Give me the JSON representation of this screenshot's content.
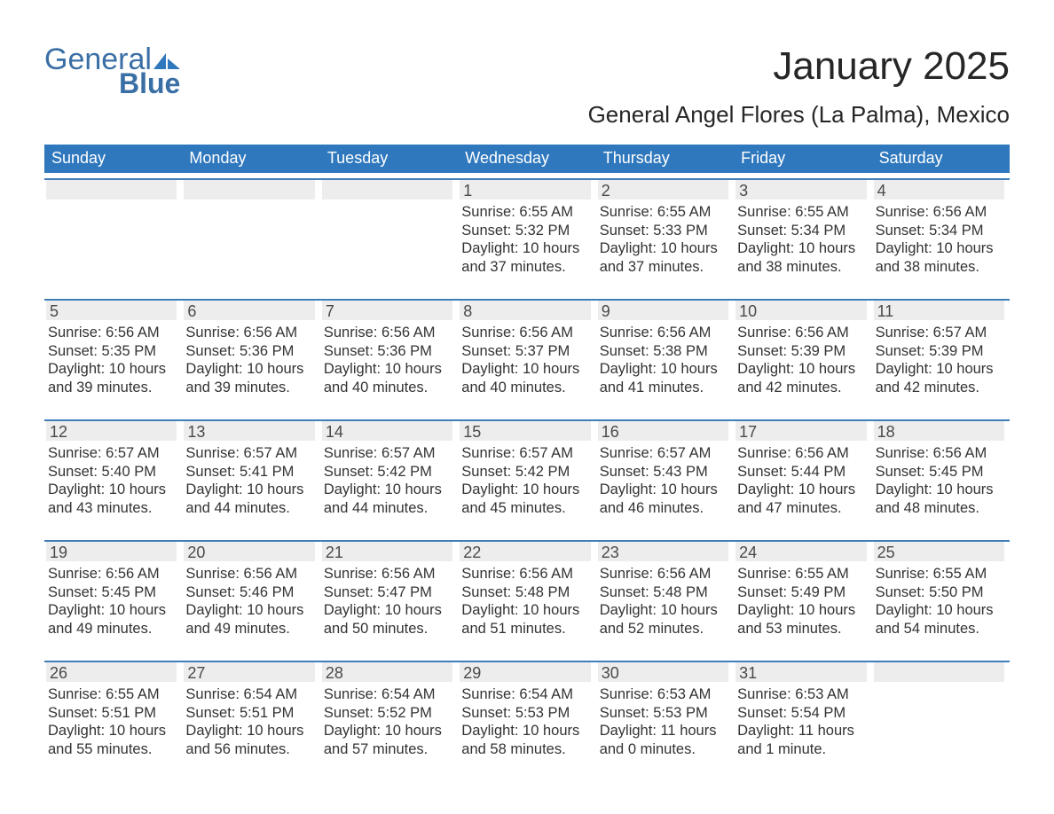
{
  "logo": {
    "text_top": "General",
    "text_bottom": "Blue"
  },
  "title": "January 2025",
  "location": "General Angel Flores (La Palma), Mexico",
  "header_bg": "#2f78bd",
  "header_fg": "#ffffff",
  "daynum_bg": "#ededed",
  "cell_border": "#3f7fb8",
  "text_color": "#333333",
  "dow": [
    "Sunday",
    "Monday",
    "Tuesday",
    "Wednesday",
    "Thursday",
    "Friday",
    "Saturday"
  ],
  "weeks": [
    [
      null,
      null,
      null,
      {
        "n": "1",
        "sr": "Sunrise: 6:55 AM",
        "ss": "Sunset: 5:32 PM",
        "dl1": "Daylight: 10 hours",
        "dl2": "and 37 minutes."
      },
      {
        "n": "2",
        "sr": "Sunrise: 6:55 AM",
        "ss": "Sunset: 5:33 PM",
        "dl1": "Daylight: 10 hours",
        "dl2": "and 37 minutes."
      },
      {
        "n": "3",
        "sr": "Sunrise: 6:55 AM",
        "ss": "Sunset: 5:34 PM",
        "dl1": "Daylight: 10 hours",
        "dl2": "and 38 minutes."
      },
      {
        "n": "4",
        "sr": "Sunrise: 6:56 AM",
        "ss": "Sunset: 5:34 PM",
        "dl1": "Daylight: 10 hours",
        "dl2": "and 38 minutes."
      }
    ],
    [
      {
        "n": "5",
        "sr": "Sunrise: 6:56 AM",
        "ss": "Sunset: 5:35 PM",
        "dl1": "Daylight: 10 hours",
        "dl2": "and 39 minutes."
      },
      {
        "n": "6",
        "sr": "Sunrise: 6:56 AM",
        "ss": "Sunset: 5:36 PM",
        "dl1": "Daylight: 10 hours",
        "dl2": "and 39 minutes."
      },
      {
        "n": "7",
        "sr": "Sunrise: 6:56 AM",
        "ss": "Sunset: 5:36 PM",
        "dl1": "Daylight: 10 hours",
        "dl2": "and 40 minutes."
      },
      {
        "n": "8",
        "sr": "Sunrise: 6:56 AM",
        "ss": "Sunset: 5:37 PM",
        "dl1": "Daylight: 10 hours",
        "dl2": "and 40 minutes."
      },
      {
        "n": "9",
        "sr": "Sunrise: 6:56 AM",
        "ss": "Sunset: 5:38 PM",
        "dl1": "Daylight: 10 hours",
        "dl2": "and 41 minutes."
      },
      {
        "n": "10",
        "sr": "Sunrise: 6:56 AM",
        "ss": "Sunset: 5:39 PM",
        "dl1": "Daylight: 10 hours",
        "dl2": "and 42 minutes."
      },
      {
        "n": "11",
        "sr": "Sunrise: 6:57 AM",
        "ss": "Sunset: 5:39 PM",
        "dl1": "Daylight: 10 hours",
        "dl2": "and 42 minutes."
      }
    ],
    [
      {
        "n": "12",
        "sr": "Sunrise: 6:57 AM",
        "ss": "Sunset: 5:40 PM",
        "dl1": "Daylight: 10 hours",
        "dl2": "and 43 minutes."
      },
      {
        "n": "13",
        "sr": "Sunrise: 6:57 AM",
        "ss": "Sunset: 5:41 PM",
        "dl1": "Daylight: 10 hours",
        "dl2": "and 44 minutes."
      },
      {
        "n": "14",
        "sr": "Sunrise: 6:57 AM",
        "ss": "Sunset: 5:42 PM",
        "dl1": "Daylight: 10 hours",
        "dl2": "and 44 minutes."
      },
      {
        "n": "15",
        "sr": "Sunrise: 6:57 AM",
        "ss": "Sunset: 5:42 PM",
        "dl1": "Daylight: 10 hours",
        "dl2": "and 45 minutes."
      },
      {
        "n": "16",
        "sr": "Sunrise: 6:57 AM",
        "ss": "Sunset: 5:43 PM",
        "dl1": "Daylight: 10 hours",
        "dl2": "and 46 minutes."
      },
      {
        "n": "17",
        "sr": "Sunrise: 6:56 AM",
        "ss": "Sunset: 5:44 PM",
        "dl1": "Daylight: 10 hours",
        "dl2": "and 47 minutes."
      },
      {
        "n": "18",
        "sr": "Sunrise: 6:56 AM",
        "ss": "Sunset: 5:45 PM",
        "dl1": "Daylight: 10 hours",
        "dl2": "and 48 minutes."
      }
    ],
    [
      {
        "n": "19",
        "sr": "Sunrise: 6:56 AM",
        "ss": "Sunset: 5:45 PM",
        "dl1": "Daylight: 10 hours",
        "dl2": "and 49 minutes."
      },
      {
        "n": "20",
        "sr": "Sunrise: 6:56 AM",
        "ss": "Sunset: 5:46 PM",
        "dl1": "Daylight: 10 hours",
        "dl2": "and 49 minutes."
      },
      {
        "n": "21",
        "sr": "Sunrise: 6:56 AM",
        "ss": "Sunset: 5:47 PM",
        "dl1": "Daylight: 10 hours",
        "dl2": "and 50 minutes."
      },
      {
        "n": "22",
        "sr": "Sunrise: 6:56 AM",
        "ss": "Sunset: 5:48 PM",
        "dl1": "Daylight: 10 hours",
        "dl2": "and 51 minutes."
      },
      {
        "n": "23",
        "sr": "Sunrise: 6:56 AM",
        "ss": "Sunset: 5:48 PM",
        "dl1": "Daylight: 10 hours",
        "dl2": "and 52 minutes."
      },
      {
        "n": "24",
        "sr": "Sunrise: 6:55 AM",
        "ss": "Sunset: 5:49 PM",
        "dl1": "Daylight: 10 hours",
        "dl2": "and 53 minutes."
      },
      {
        "n": "25",
        "sr": "Sunrise: 6:55 AM",
        "ss": "Sunset: 5:50 PM",
        "dl1": "Daylight: 10 hours",
        "dl2": "and 54 minutes."
      }
    ],
    [
      {
        "n": "26",
        "sr": "Sunrise: 6:55 AM",
        "ss": "Sunset: 5:51 PM",
        "dl1": "Daylight: 10 hours",
        "dl2": "and 55 minutes."
      },
      {
        "n": "27",
        "sr": "Sunrise: 6:54 AM",
        "ss": "Sunset: 5:51 PM",
        "dl1": "Daylight: 10 hours",
        "dl2": "and 56 minutes."
      },
      {
        "n": "28",
        "sr": "Sunrise: 6:54 AM",
        "ss": "Sunset: 5:52 PM",
        "dl1": "Daylight: 10 hours",
        "dl2": "and 57 minutes."
      },
      {
        "n": "29",
        "sr": "Sunrise: 6:54 AM",
        "ss": "Sunset: 5:53 PM",
        "dl1": "Daylight: 10 hours",
        "dl2": "and 58 minutes."
      },
      {
        "n": "30",
        "sr": "Sunrise: 6:53 AM",
        "ss": "Sunset: 5:53 PM",
        "dl1": "Daylight: 11 hours",
        "dl2": "and 0 minutes."
      },
      {
        "n": "31",
        "sr": "Sunrise: 6:53 AM",
        "ss": "Sunset: 5:54 PM",
        "dl1": "Daylight: 11 hours",
        "dl2": "and 1 minute."
      },
      null
    ]
  ]
}
